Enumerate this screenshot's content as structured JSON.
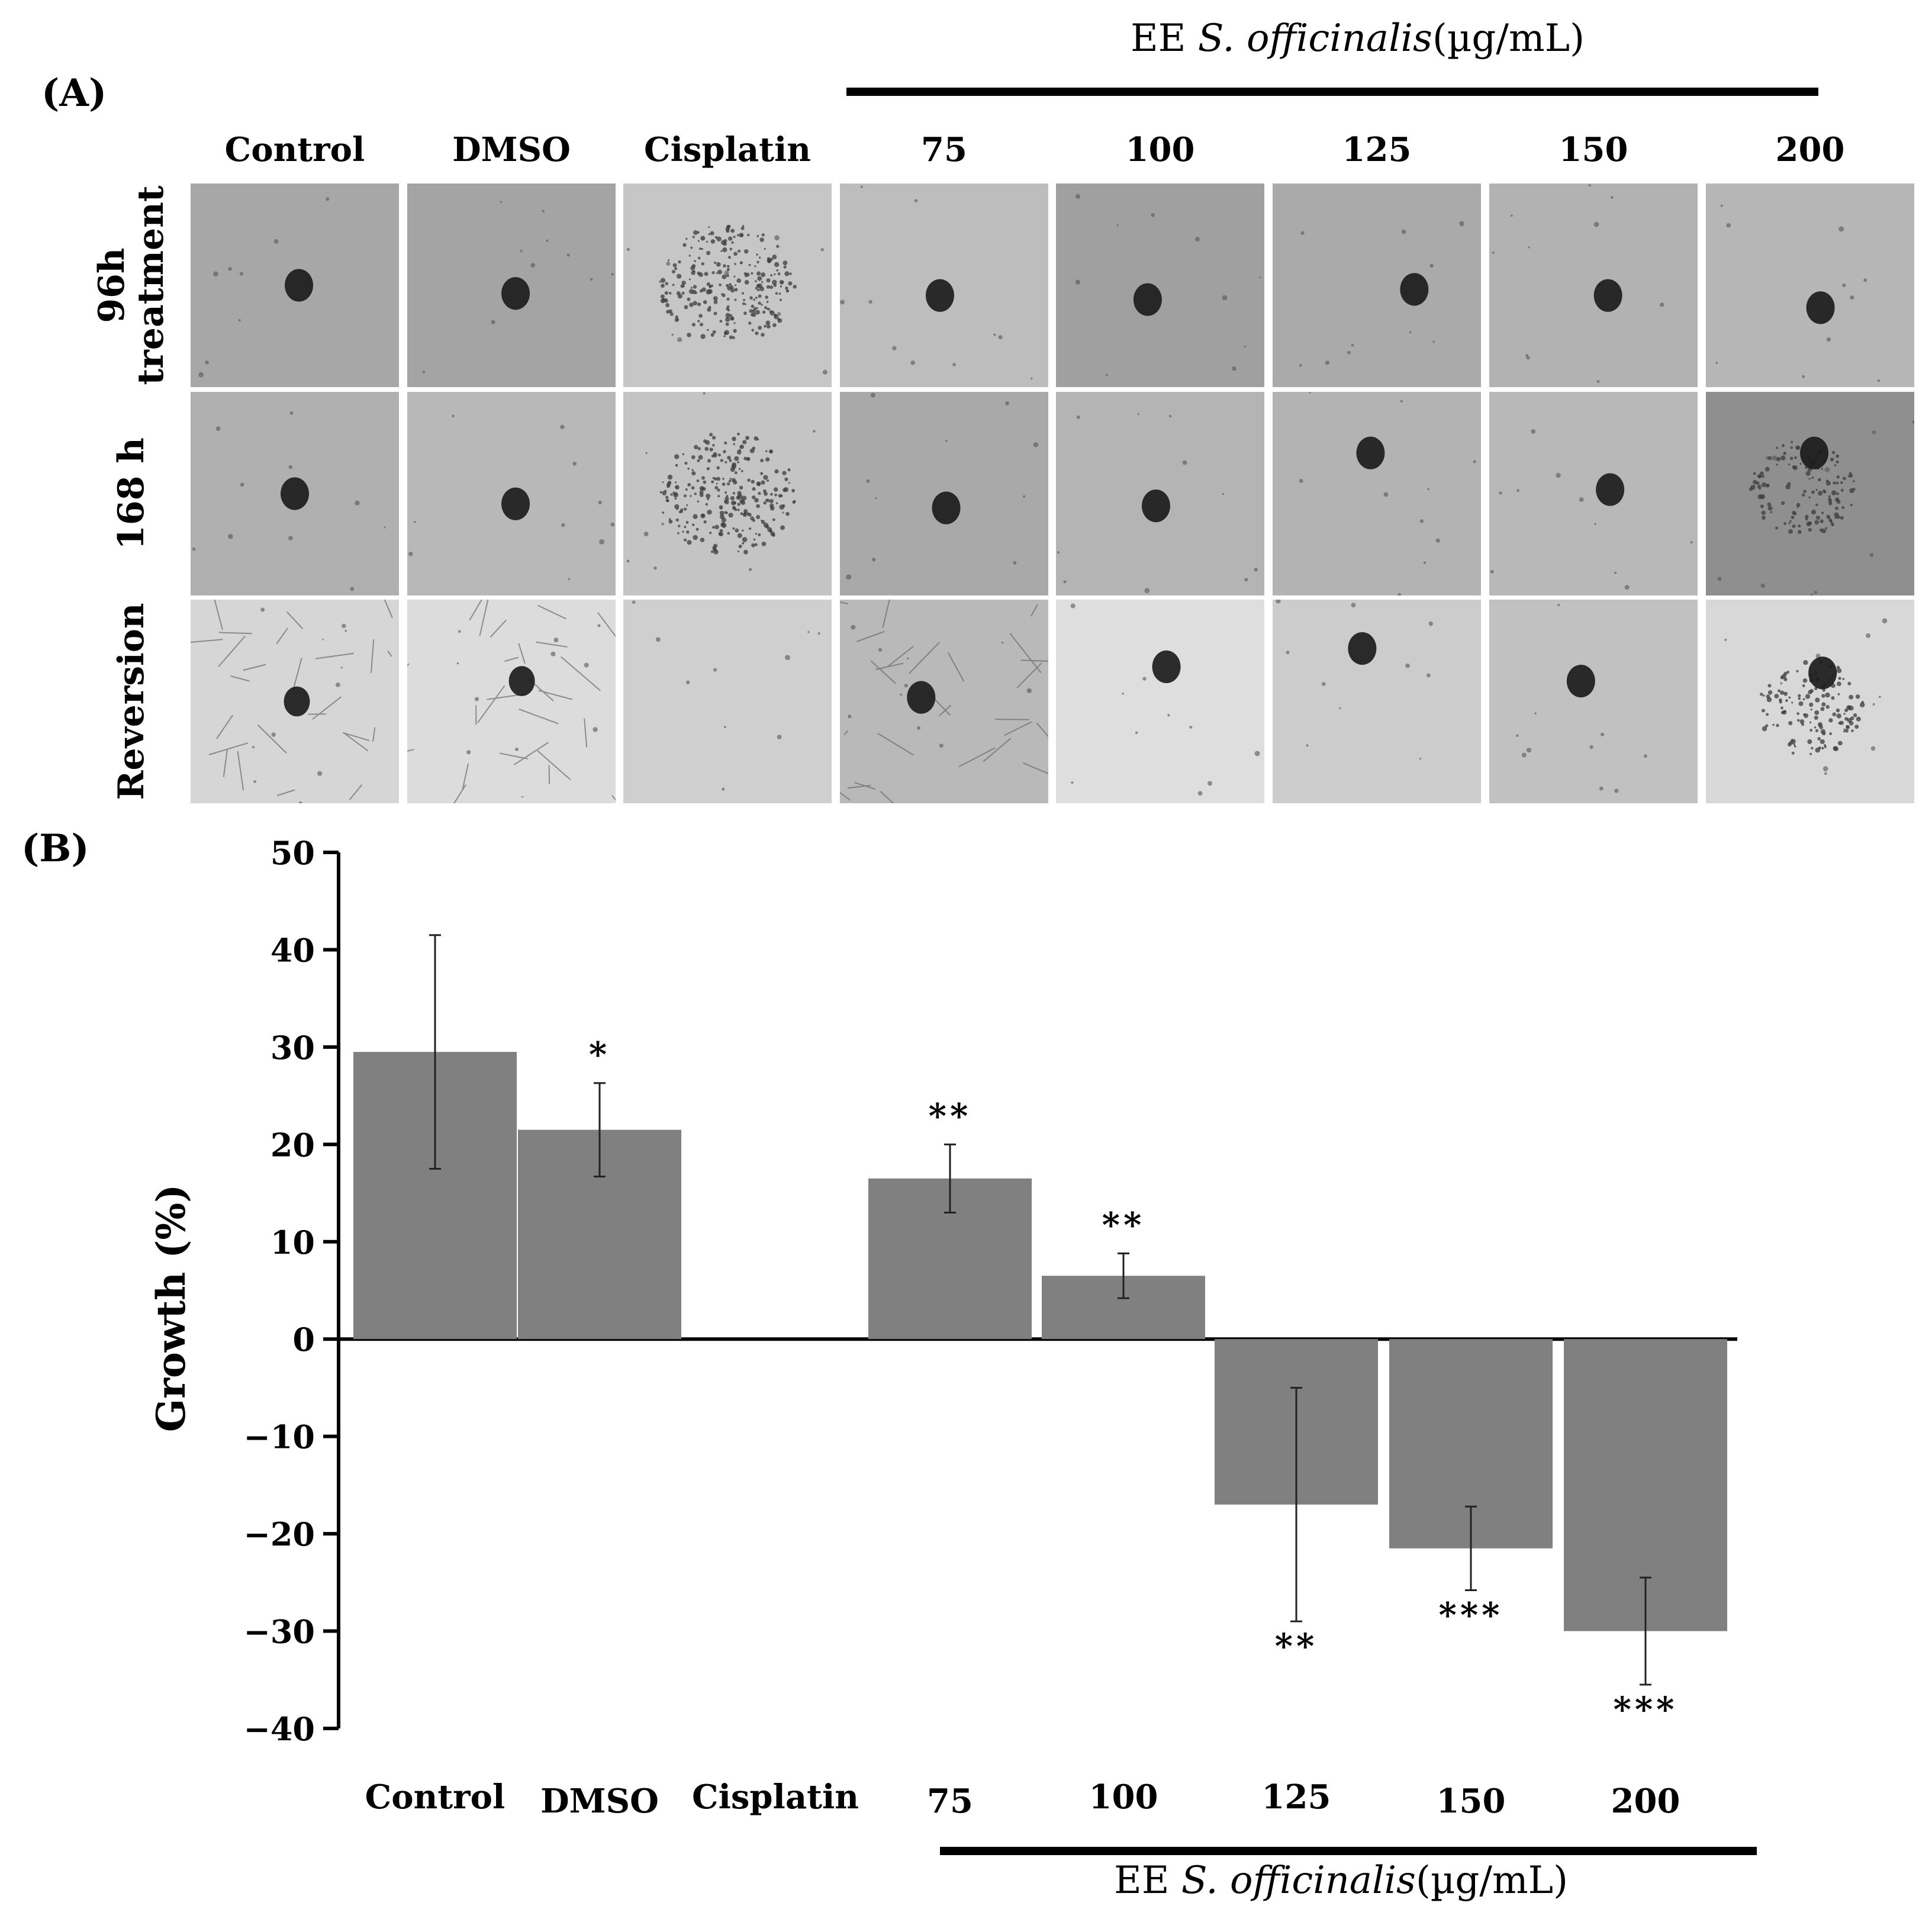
{
  "panel_a": {
    "label": "(A)",
    "header": {
      "prefix": "EE",
      "species": "S. officinalis",
      "unit": "(µg/mL)"
    },
    "columns": [
      "Control",
      "DMSO",
      "Cisplatin",
      "75",
      "100",
      "125",
      "150",
      "200"
    ],
    "rows": [
      {
        "label_lines": [
          "96h",
          "treatment"
        ]
      },
      {
        "label_lines": [
          "168 h"
        ]
      },
      {
        "label_lines": [
          "Reversion"
        ]
      }
    ],
    "images": [
      [
        "spheroid",
        "spheroid",
        "dispersed",
        "spheroid",
        "spheroid",
        "spheroid",
        "spheroid",
        "spheroid"
      ],
      [
        "spheroid",
        "spheroid",
        "dispersed",
        "spheroid",
        "spheroid",
        "spheroid",
        "spheroid",
        "spheroid-scattered"
      ],
      [
        "network",
        "network",
        "empty",
        "network-spheroid",
        "spheroid",
        "spheroid",
        "spheroid",
        "spheroid-scattered"
      ]
    ]
  },
  "panel_b": {
    "label": "(B)",
    "header": {
      "prefix": "EE",
      "species": "S. officinalis",
      "unit": "(µg/mL)"
    }
  },
  "chart_data": {
    "type": "bar",
    "ylabel": "Growth (%)",
    "xlabel": "",
    "ylim": [
      -40,
      50
    ],
    "yticks": [
      50,
      40,
      30,
      20,
      10,
      0,
      -10,
      -20,
      -30,
      -40
    ],
    "ytick_labels": [
      "50",
      "40",
      "30",
      "20",
      "10",
      "0",
      "−10",
      "−20",
      "−30",
      "−40"
    ],
    "categories": [
      "Control",
      "DMSO",
      "Cisplatin",
      "75",
      "100",
      "125",
      "150",
      "200"
    ],
    "values": [
      29.5,
      21.5,
      null,
      16.5,
      6.5,
      -17,
      -21.5,
      -30
    ],
    "errors": [
      12,
      4.8,
      null,
      3.5,
      2.3,
      12,
      4.3,
      5.5
    ],
    "significance": [
      "",
      "*",
      "",
      "**",
      "**",
      "**",
      "***",
      "***"
    ],
    "bar_color": "#808080",
    "grid": false
  }
}
